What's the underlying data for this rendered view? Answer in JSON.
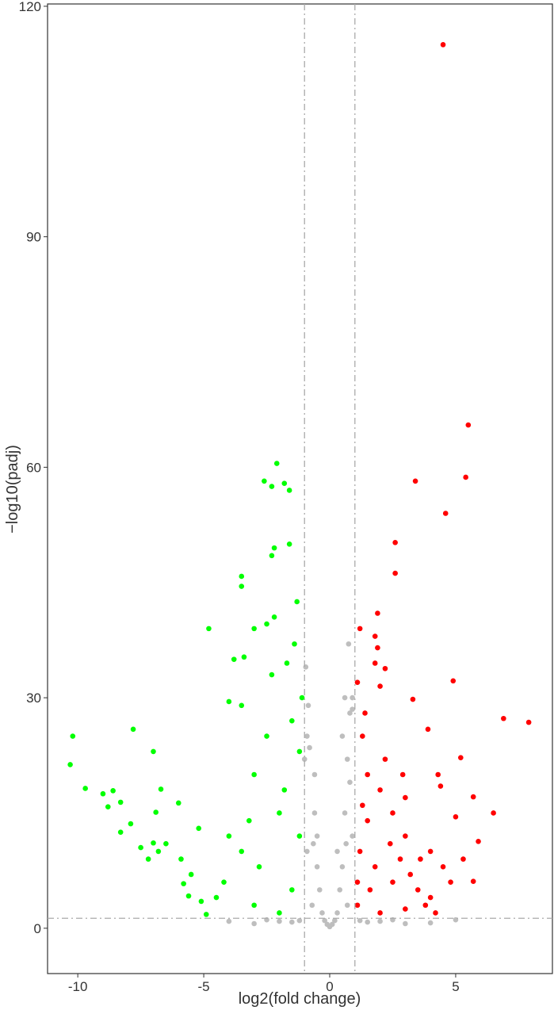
{
  "chart_data": {
    "type": "scatter",
    "xlabel": "log2(fold change)",
    "ylabel": "−log10(padj)",
    "xlim": [
      -11.2,
      8.84
    ],
    "ylim": [
      -5.9,
      120.3
    ],
    "xticks": [
      -10,
      -5,
      0,
      5
    ],
    "yticks": [
      0,
      30,
      60,
      90,
      120
    ],
    "vlines": [
      -1,
      1
    ],
    "hline": 1.3,
    "line_color": "#aaaaaa",
    "series": [
      {
        "color": "#bebebe",
        "x": [
          0,
          0.3,
          -0.3,
          0.5,
          -0.5,
          0.6,
          -0.6,
          0.7,
          -0.8,
          0.8,
          0.6,
          0.9,
          -0.9,
          -0.95,
          -0.6,
          0.4,
          -0.4,
          0.8,
          -1,
          0.9,
          -0.9,
          0.2,
          -0.2,
          0.7,
          -0.7,
          1.5,
          -1.5,
          3,
          -3,
          2.5,
          -2.5,
          0.75,
          0.9,
          0.5,
          -0.5,
          0.3,
          4,
          -4,
          5,
          -0.85,
          0.1,
          -0.1,
          0.65,
          -0.65,
          1.2,
          -1.2,
          2,
          -2
        ],
        "values": [
          0.2,
          2,
          2,
          8,
          8,
          15,
          15,
          22,
          23.5,
          28,
          30,
          28.5,
          25,
          34,
          20,
          5,
          5,
          19,
          22,
          12,
          10,
          1,
          1,
          3,
          3,
          0.8,
          0.8,
          0.6,
          0.6,
          1.1,
          1.1,
          37,
          30,
          25,
          12,
          10,
          0.7,
          0.9,
          1.1,
          29,
          0.5,
          0.5,
          11,
          11,
          1,
          1,
          0.9,
          0.9
        ]
      },
      {
        "color": "#00ff00",
        "x": [
          -2.1,
          -2.6,
          -2.3,
          -1.8,
          -1.6,
          -2.2,
          -1.6,
          -2.3,
          -3.5,
          -3.5,
          -1.3,
          -2.2,
          -2.5,
          -3.0,
          -4.8,
          -1.4,
          -1.7,
          -3.8,
          -3.4,
          -3.5,
          -4.0,
          -10.2,
          -7.8,
          -10.3,
          -7.0,
          -9.7,
          -9.0,
          -8.8,
          -8.6,
          -8.3,
          -6.7,
          -6.0,
          -7.9,
          -8.3,
          -6.9,
          -6.5,
          -7.5,
          -7.0,
          -7.2,
          -6.8,
          -5.9,
          -5.2,
          -5.5,
          -5.8,
          -5.1,
          -4.9,
          -5.6,
          -3.0,
          -2.5,
          -1.5,
          -1.2,
          -2,
          -3.5,
          -4.2,
          -4.5,
          -3,
          -2,
          -1.5,
          -1.2,
          -2.8,
          -1.8,
          -4,
          -3.2,
          -1.1,
          -2.3
        ],
        "values": [
          60.5,
          58.2,
          57.5,
          57.9,
          57,
          49.5,
          50,
          48.5,
          45.8,
          44.5,
          42.5,
          40.5,
          39.6,
          39,
          39,
          37,
          34.5,
          35,
          35.3,
          29,
          29.5,
          25,
          25.9,
          21.3,
          23,
          18.2,
          17.5,
          15.8,
          17.9,
          16.4,
          18.1,
          16.3,
          13.6,
          12.5,
          15.1,
          11,
          10.5,
          11.1,
          9,
          10,
          9,
          13,
          7,
          5.8,
          3.5,
          1.8,
          4.2,
          20,
          25,
          27,
          23,
          15,
          10,
          6,
          4,
          3,
          2,
          5,
          12,
          8,
          18,
          12,
          14,
          30,
          33
        ]
      },
      {
        "color": "#ff0000",
        "x": [
          4.5,
          5.5,
          5.4,
          3.4,
          4.6,
          2.6,
          2.6,
          1.9,
          1.2,
          1.8,
          1.9,
          1.8,
          2.2,
          4.9,
          1.1,
          2.0,
          3.3,
          6.9,
          7.9,
          3.9,
          5.2,
          4.3,
          4.4,
          5.7,
          6.5,
          5.0,
          5.9,
          5.7,
          1.3,
          1.5,
          2.0,
          2.5,
          3,
          1.2,
          1.8,
          2.5,
          3.5,
          4,
          1.1,
          2,
          3,
          1.5,
          2.8,
          3.2,
          4.5,
          4.8,
          2.2,
          1.4,
          1.6,
          3.8,
          4.2,
          1.3,
          2.4,
          3.6,
          1.1,
          5.3,
          4.0,
          2.9,
          3.0
        ],
        "values": [
          115,
          65.5,
          58.7,
          58.2,
          54,
          50.2,
          46.2,
          41,
          39,
          38,
          36.5,
          34.5,
          33.8,
          32.2,
          32,
          31.5,
          29.8,
          27.3,
          26.8,
          25.9,
          22.2,
          20,
          18.5,
          17.1,
          15,
          14.5,
          11.3,
          6.1,
          25,
          20,
          18,
          15,
          12,
          10,
          8,
          6,
          5,
          4,
          3,
          2,
          2.5,
          14,
          9,
          7,
          8,
          6,
          22,
          28,
          5,
          3,
          2,
          16,
          11,
          9,
          6,
          9,
          10,
          20,
          17
        ]
      }
    ]
  }
}
